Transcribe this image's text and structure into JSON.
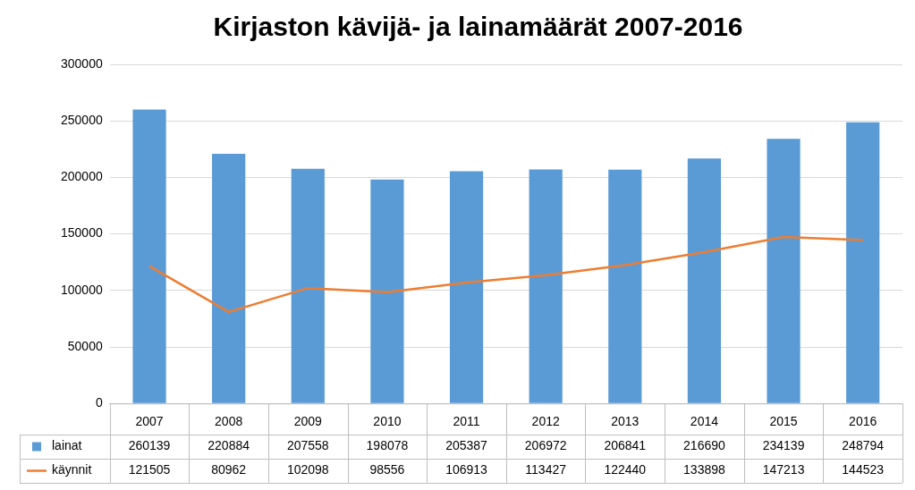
{
  "chart_data": {
    "type": "bar",
    "title": "Kirjaston kävijä- ja lainamäärät 2007-2016",
    "categories": [
      "2007",
      "2008",
      "2009",
      "2010",
      "2011",
      "2012",
      "2013",
      "2014",
      "2015",
      "2016"
    ],
    "series": [
      {
        "name": "lainat",
        "type": "bar",
        "color": "#5B9BD5",
        "values": [
          260139,
          220884,
          207558,
          198078,
          205387,
          206972,
          206841,
          216690,
          234139,
          248794
        ]
      },
      {
        "name": "käynnit",
        "type": "line",
        "color": "#ED7D31",
        "values": [
          121505,
          80962,
          102098,
          98556,
          106913,
          113427,
          122440,
          133898,
          147213,
          144523
        ]
      }
    ],
    "ylim": [
      0,
      300000
    ],
    "yticks": [
      0,
      50000,
      100000,
      150000,
      200000,
      250000,
      300000
    ],
    "grid": true,
    "data_labels": true
  }
}
